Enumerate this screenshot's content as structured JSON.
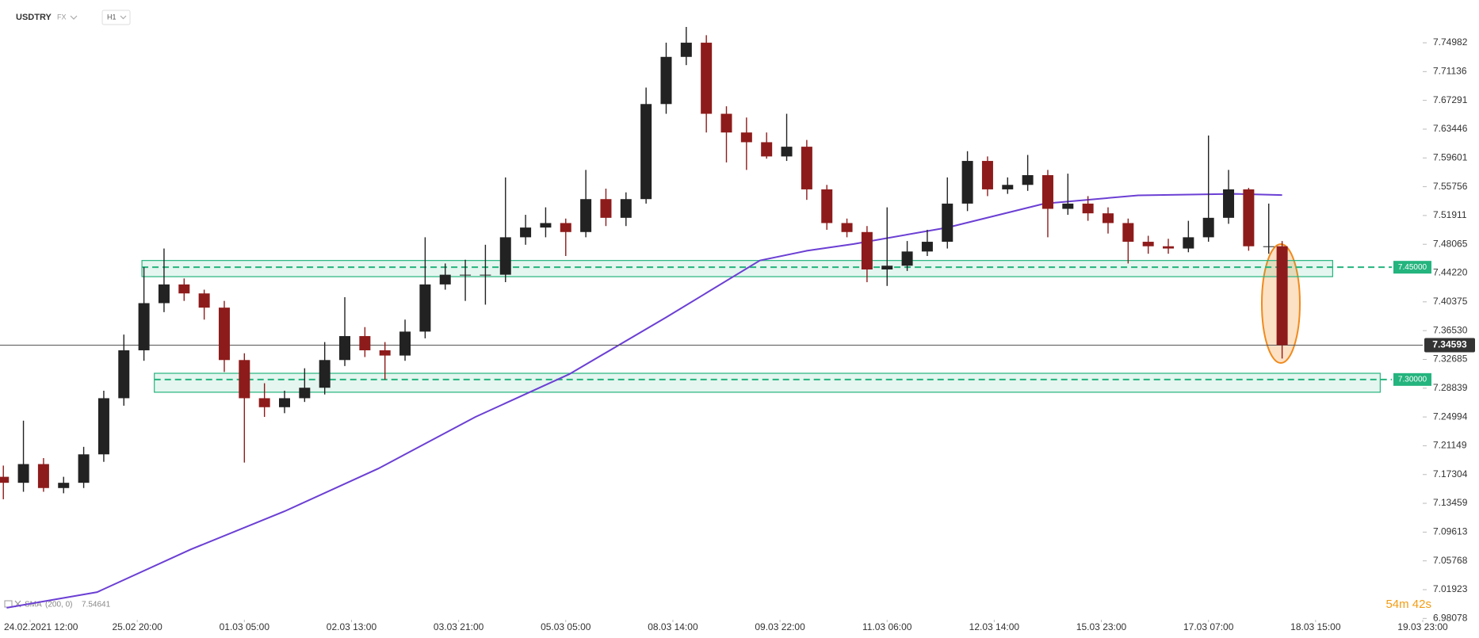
{
  "chart_data": {
    "type": "candlestick",
    "symbol": "USDTRY",
    "market": "FX",
    "interval": "H1",
    "up_color": "#222222",
    "down_color": "#8e1b1b",
    "candles": {
      "x": [
        -8,
        -2,
        4,
        10,
        16,
        22,
        28,
        34,
        40,
        46,
        52,
        58,
        64,
        70,
        76,
        82,
        88,
        94,
        100,
        106,
        112,
        118,
        124,
        130,
        136,
        142,
        148,
        154,
        160,
        166,
        172,
        178,
        184,
        190,
        196,
        202,
        208,
        214,
        220,
        226,
        232,
        238,
        244,
        250,
        256,
        262,
        268,
        274,
        280,
        286,
        292,
        298,
        304,
        310,
        316,
        322,
        328,
        334,
        340,
        346,
        352,
        358,
        364,
        370,
        374
      ],
      "open": [
        7.17,
        7.162,
        7.187,
        7.155,
        7.162,
        7.2,
        7.275,
        7.339,
        7.402,
        7.427,
        7.415,
        7.396,
        7.326,
        7.275,
        7.263,
        7.275,
        7.289,
        7.326,
        7.358,
        7.339,
        7.332,
        7.364,
        7.427,
        7.44,
        7.44,
        7.44,
        7.49,
        7.503,
        7.509,
        7.497,
        7.541,
        7.516,
        7.541,
        7.668,
        7.731,
        7.75,
        7.655,
        7.63,
        7.617,
        7.598,
        7.611,
        7.554,
        7.509,
        7.497,
        7.447,
        7.452,
        7.471,
        7.484,
        7.535,
        7.592,
        7.554,
        7.56,
        7.573,
        7.528,
        7.535,
        7.522,
        7.509,
        7.484,
        7.478,
        7.475,
        7.49,
        7.516,
        7.554,
        7.478,
        7.478
      ],
      "high": [
        7.185,
        7.245,
        7.195,
        7.17,
        7.21,
        7.285,
        7.36,
        7.45,
        7.475,
        7.435,
        7.42,
        7.405,
        7.335,
        7.295,
        7.285,
        7.315,
        7.35,
        7.41,
        7.37,
        7.35,
        7.38,
        7.49,
        7.455,
        7.46,
        7.48,
        7.57,
        7.52,
        7.53,
        7.515,
        7.58,
        7.555,
        7.55,
        7.69,
        7.75,
        7.771,
        7.76,
        7.665,
        7.65,
        7.63,
        7.655,
        7.62,
        7.56,
        7.515,
        7.505,
        7.53,
        7.485,
        7.5,
        7.57,
        7.605,
        7.598,
        7.57,
        7.6,
        7.58,
        7.575,
        7.545,
        7.53,
        7.515,
        7.492,
        7.488,
        7.512,
        7.626,
        7.58,
        7.556,
        7.535,
        7.485
      ],
      "low": [
        7.14,
        7.15,
        7.15,
        7.148,
        7.155,
        7.19,
        7.265,
        7.325,
        7.39,
        7.405,
        7.38,
        7.31,
        7.189,
        7.25,
        7.255,
        7.27,
        7.28,
        7.318,
        7.33,
        7.3,
        7.325,
        7.355,
        7.42,
        7.405,
        7.4,
        7.43,
        7.48,
        7.49,
        7.465,
        7.49,
        7.505,
        7.505,
        7.535,
        7.655,
        7.72,
        7.63,
        7.59,
        7.58,
        7.595,
        7.592,
        7.54,
        7.5,
        7.49,
        7.43,
        7.425,
        7.445,
        7.465,
        7.475,
        7.525,
        7.545,
        7.548,
        7.552,
        7.49,
        7.52,
        7.512,
        7.495,
        7.455,
        7.468,
        7.468,
        7.47,
        7.484,
        7.508,
        7.472,
        7.468,
        7.328
      ],
      "close": [
        7.162,
        7.187,
        7.155,
        7.162,
        7.2,
        7.275,
        7.339,
        7.402,
        7.427,
        7.415,
        7.396,
        7.326,
        7.275,
        7.263,
        7.275,
        7.289,
        7.326,
        7.358,
        7.339,
        7.332,
        7.364,
        7.427,
        7.44,
        7.44,
        7.44,
        7.49,
        7.503,
        7.509,
        7.497,
        7.541,
        7.516,
        7.541,
        7.668,
        7.731,
        7.75,
        7.655,
        7.63,
        7.617,
        7.598,
        7.611,
        7.554,
        7.509,
        7.497,
        7.447,
        7.452,
        7.471,
        7.484,
        7.535,
        7.592,
        7.554,
        7.56,
        7.573,
        7.528,
        7.535,
        7.522,
        7.509,
        7.484,
        7.478,
        7.475,
        7.49,
        7.516,
        7.554,
        7.478,
        7.478,
        7.34593
      ]
    },
    "sma": {
      "name": "SMA",
      "params": "(200, 0)",
      "last_value": 7.54641,
      "color": "#6b3fd4",
      "x": [
        -7,
        20,
        48,
        76,
        104,
        133,
        161,
        190,
        218,
        232,
        246,
        274,
        303,
        331,
        360,
        374
      ],
      "values": [
        6.995,
        7.016,
        7.073,
        7.124,
        7.181,
        7.25,
        7.307,
        7.383,
        7.459,
        7.472,
        7.481,
        7.503,
        7.535,
        7.546,
        7.548,
        7.54641
      ]
    },
    "zone_color": "#24b47e",
    "zones": [
      {
        "level": {
          "value": 7.45,
          "label": "7.45000"
        },
        "y_range": [
          7.4374,
          7.459
        ],
        "x_range": [
          33.4,
          389.1
        ]
      },
      {
        "level": {
          "value": 7.3,
          "label": "7.30000"
        },
        "y_range": [
          7.283,
          7.3083
        ],
        "x_range": [
          37.1,
          403.3
        ]
      }
    ],
    "last_price": 7.34593,
    "countdown": "54m 42s",
    "xlim": [
      -9,
      416
    ],
    "xticks": [
      {
        "value": 0,
        "label": "24.02.2021 12:00"
      },
      {
        "value": 32,
        "label": "25.02 20:00"
      },
      {
        "value": 64,
        "label": "01.03 05:00"
      },
      {
        "value": 96,
        "label": "02.03 13:00"
      },
      {
        "value": 128,
        "label": "03.03 21:00"
      },
      {
        "value": 160,
        "label": "05.03 05:00"
      },
      {
        "value": 192,
        "label": "08.03 14:00"
      },
      {
        "value": 224,
        "label": "09.03 22:00"
      },
      {
        "value": 256,
        "label": "11.03 06:00"
      },
      {
        "value": 288,
        "label": "12.03 14:00"
      },
      {
        "value": 320,
        "label": "15.03 23:00"
      },
      {
        "value": 352,
        "label": "17.03 07:00"
      },
      {
        "value": 384,
        "label": "18.03 15:00"
      },
      {
        "value": 416,
        "label": "19.03 23:00"
      }
    ],
    "ylim": [
      6.979,
      7.807
    ],
    "yticks": [
      7.74982,
      7.71136,
      7.67291,
      7.63446,
      7.59601,
      7.55756,
      7.51911,
      7.48065,
      {
        "value": 7.4422,
        "label": "7.44220"
      },
      7.40375,
      {
        "value": 7.3653,
        "label": "7.36530"
      },
      7.32685,
      7.28839,
      7.24994,
      7.21149,
      7.17304,
      7.13459,
      7.09613,
      7.05768,
      7.01923,
      6.98078
    ]
  }
}
